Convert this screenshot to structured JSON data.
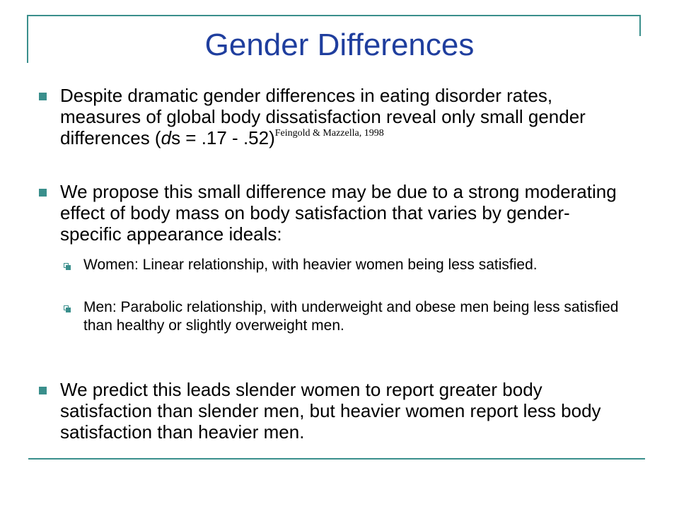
{
  "title": "Gender Differences",
  "bullets": [
    {
      "text_pre": "Despite dramatic gender differences in eating disorder rates, measures of global body dissatisfaction reveal only small gender differences (",
      "text_italic": "d",
      "text_post": "s = .17 - .52)",
      "citation": "Feingold & Mazzella, 1998"
    },
    {
      "text": "We propose this small difference may be due to a strong moderating effect of body mass on body satisfaction that varies by gender-specific appearance ideals:"
    },
    {
      "text": "We predict this leads slender women to report greater body satisfaction than slender men, but heavier women report less body satisfaction than heavier men."
    }
  ],
  "sub_bullets": [
    {
      "text": "Women: Linear relationship, with heavier women being less satisfied."
    },
    {
      "text": "Men: Parabolic relationship, with underweight and obese men being less satisfied than healthy or slightly overweight men."
    }
  ],
  "colors": {
    "title": "#1f3e9e",
    "accent": "#3a8f8c"
  }
}
